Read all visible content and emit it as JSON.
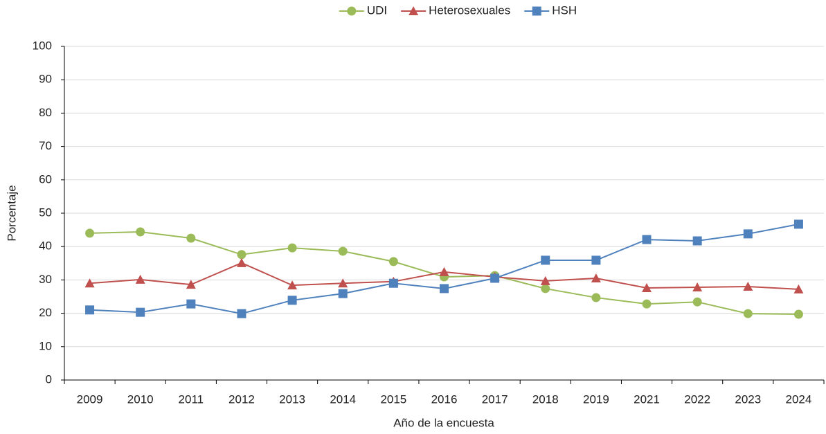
{
  "chart_data": {
    "type": "line",
    "x_label": "Año de la encuesta",
    "y_label": "Porcentaje",
    "categories": [
      "2009",
      "2010",
      "2011",
      "2012",
      "2013",
      "2014",
      "2015",
      "2016",
      "2017",
      "2018",
      "2019",
      "2021",
      "2022",
      "2023",
      "2024"
    ],
    "series": [
      {
        "name": "UDI",
        "color": "#9bbb59",
        "marker": "circle",
        "values": [
          44.0,
          44.4,
          42.5,
          37.6,
          39.6,
          38.6,
          35.5,
          30.9,
          31.3,
          27.4,
          24.7,
          22.8,
          23.4,
          19.9,
          19.7
        ]
      },
      {
        "name": "Heterosexuales",
        "color": "#c0504d",
        "marker": "triangle",
        "values": [
          29.0,
          30.1,
          28.6,
          35.1,
          28.4,
          29.0,
          29.5,
          32.4,
          30.9,
          29.7,
          30.5,
          27.6,
          27.8,
          28.0,
          27.2
        ]
      },
      {
        "name": "HSH",
        "color": "#4f81bd",
        "marker": "square",
        "values": [
          21.0,
          20.3,
          22.8,
          19.9,
          23.9,
          25.9,
          29.0,
          27.4,
          30.5,
          35.9,
          35.9,
          42.1,
          41.7,
          43.8,
          46.7
        ]
      }
    ],
    "ylim": [
      0,
      100
    ],
    "yticks": [
      0,
      10,
      20,
      30,
      40,
      50,
      60,
      70,
      80,
      90,
      100
    ],
    "grid": true,
    "legend": "top"
  }
}
